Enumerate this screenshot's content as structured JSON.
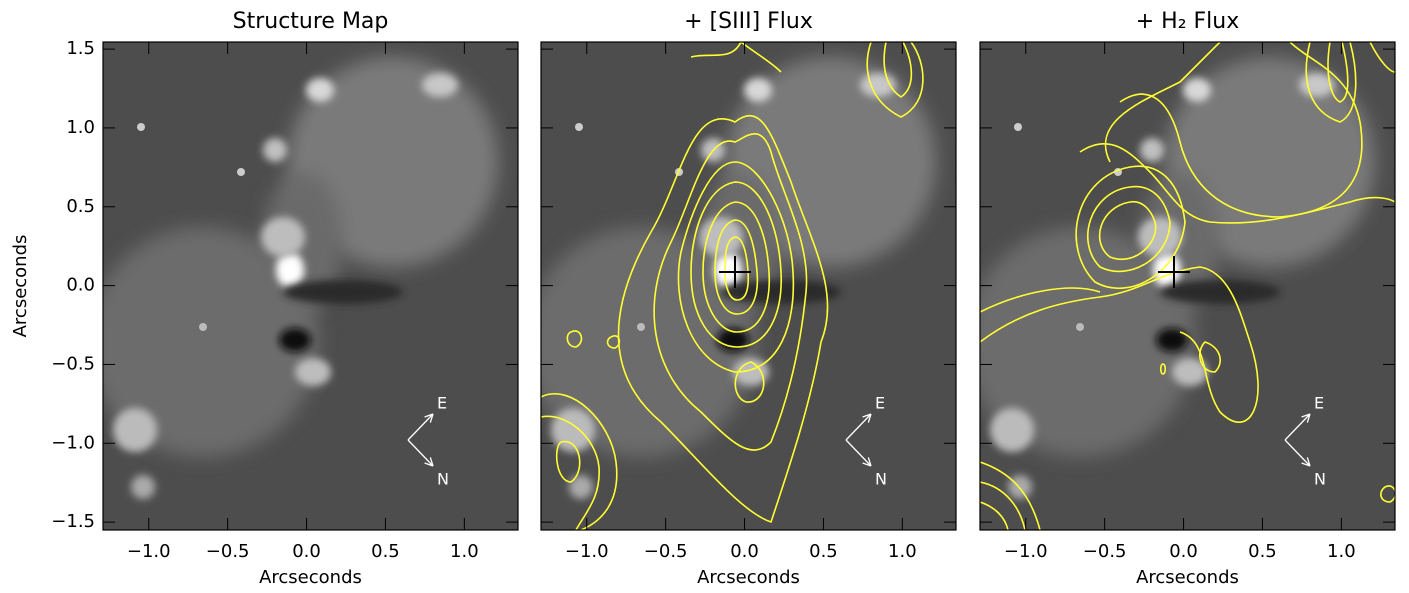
{
  "chart_data": [
    {
      "type": "image",
      "title": "Structure Map",
      "xlabel": "Arcseconds",
      "ylabel": "Arcseconds",
      "xlim": [
        -1.29,
        1.34
      ],
      "ylim": [
        -1.55,
        1.545
      ],
      "xticks": [
        {
          "value": -1.0,
          "label": "−1.0"
        },
        {
          "value": -0.5,
          "label": "−0.5"
        },
        {
          "value": 0.0,
          "label": "0.0"
        },
        {
          "value": 0.5,
          "label": "0.5"
        },
        {
          "value": 1.0,
          "label": "1.0"
        }
      ],
      "yticks": [
        {
          "value": -1.5,
          "label": "−1.5"
        },
        {
          "value": -1.0,
          "label": "−1.0"
        },
        {
          "value": -0.5,
          "label": "−0.5"
        },
        {
          "value": 0.0,
          "label": "0.0"
        },
        {
          "value": 0.5,
          "label": "0.5"
        },
        {
          "value": 1.0,
          "label": "1.0"
        },
        {
          "value": 1.5,
          "label": "1.5"
        }
      ],
      "compass": {
        "east": "E",
        "north": "N"
      }
    },
    {
      "type": "image",
      "title": "+ [SIII] Flux",
      "xlabel": "Arcseconds",
      "xlim": [
        -1.29,
        1.34
      ],
      "ylim": [
        -1.55,
        1.545
      ],
      "xticks": [
        {
          "value": -1.0,
          "label": "−1.0"
        },
        {
          "value": -0.5,
          "label": "−0.5"
        },
        {
          "value": 0.0,
          "label": "0.0"
        },
        {
          "value": 0.5,
          "label": "0.5"
        },
        {
          "value": 1.0,
          "label": "1.0"
        }
      ],
      "yticks": [
        -1.5,
        -1.0,
        -0.5,
        0.0,
        0.5,
        1.0,
        1.5
      ],
      "compass": {
        "east": "E",
        "north": "N"
      }
    },
    {
      "type": "image",
      "title": "+ H₂ Flux",
      "xlabel": "Arcseconds",
      "xlim": [
        -1.29,
        1.34
      ],
      "ylim": [
        -1.55,
        1.545
      ],
      "xticks": [
        {
          "value": -1.0,
          "label": "−1.0"
        },
        {
          "value": -0.5,
          "label": "−0.5"
        },
        {
          "value": 0.0,
          "label": "0.0"
        },
        {
          "value": 0.5,
          "label": "0.5"
        },
        {
          "value": 1.0,
          "label": "1.0"
        }
      ],
      "yticks": [
        -1.5,
        -1.0,
        -0.5,
        0.0,
        0.5,
        1.0,
        1.5
      ],
      "compass": {
        "east": "E",
        "north": "N"
      }
    }
  ]
}
